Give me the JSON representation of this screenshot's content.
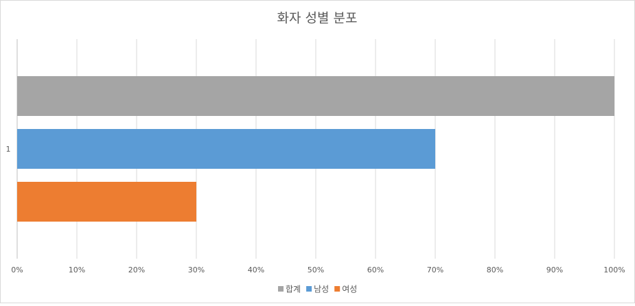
{
  "chart_data": {
    "type": "bar",
    "orientation": "horizontal",
    "title": "화자 성별 분포",
    "categories": [
      "1"
    ],
    "series": [
      {
        "name": "합계",
        "color": "#a5a5a5",
        "values": [
          100
        ]
      },
      {
        "name": "남성",
        "color": "#5b9bd5",
        "values": [
          70
        ]
      },
      {
        "name": "여성",
        "color": "#ed7d31",
        "values": [
          30
        ]
      }
    ],
    "xlim": [
      0,
      100
    ],
    "xticks": [
      {
        "value": 0,
        "label": "0%"
      },
      {
        "value": 10,
        "label": "10%"
      },
      {
        "value": 20,
        "label": "20%"
      },
      {
        "value": 30,
        "label": "30%"
      },
      {
        "value": 40,
        "label": "40%"
      },
      {
        "value": 50,
        "label": "50%"
      },
      {
        "value": 60,
        "label": "60%"
      },
      {
        "value": 70,
        "label": "70%"
      },
      {
        "value": 80,
        "label": "80%"
      },
      {
        "value": 90,
        "label": "90%"
      },
      {
        "value": 100,
        "label": "100%"
      }
    ],
    "grid": true,
    "legend": "bottom"
  }
}
